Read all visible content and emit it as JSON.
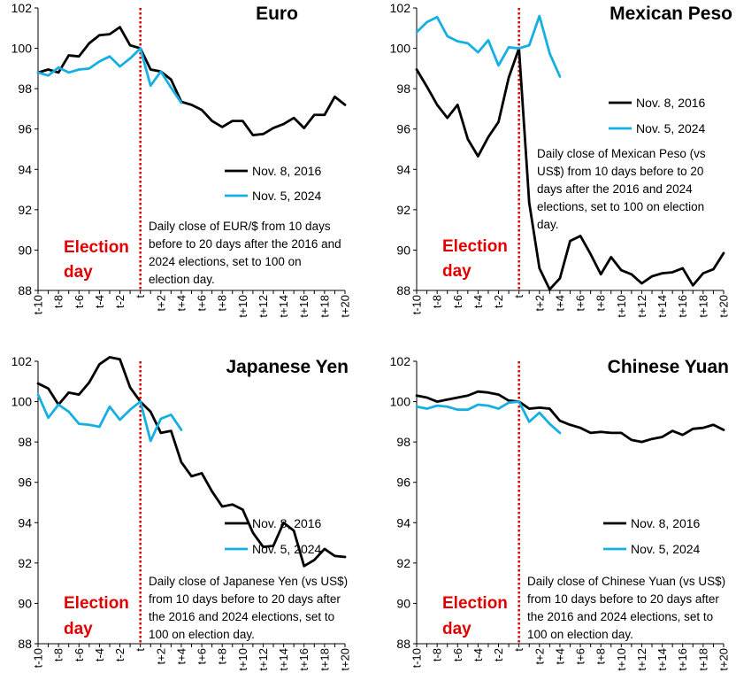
{
  "chart_data": [
    {
      "type": "line",
      "title": "Euro",
      "ylim": [
        88,
        102
      ],
      "yticks": [
        88,
        90,
        92,
        94,
        96,
        98,
        100,
        102
      ],
      "x_tick_labels": [
        "t-10",
        "t-8",
        "t-6",
        "t-4",
        "t-2",
        "t",
        "t+2",
        "t+4",
        "t+6",
        "t+8",
        "t+10",
        "t+12",
        "t+14",
        "t+16",
        "t+18",
        "t+20"
      ],
      "event_label": [
        "Election",
        "day"
      ],
      "note": [
        "Daily close of EUR/$ from 10 days",
        "before to 20 days after the 2016 and",
        "2024 elections, set to 100 on",
        "election day."
      ],
      "series": [
        {
          "name": "Nov. 8, 2016",
          "color": "#000000",
          "start": -10,
          "values": [
            98.8,
            98.95,
            98.8,
            99.65,
            99.6,
            100.25,
            100.65,
            100.7,
            101.05,
            100.15,
            100.0,
            98.95,
            98.85,
            98.45,
            97.35,
            97.2,
            96.95,
            96.4,
            96.1,
            96.4,
            96.4,
            95.7,
            95.75,
            96.05,
            96.25,
            96.55,
            96.05,
            96.7,
            96.7,
            97.6,
            97.2
          ]
        },
        {
          "name": "Nov. 5, 2024",
          "color": "#16AFE3",
          "start": -10,
          "values": [
            98.8,
            98.65,
            99.05,
            98.8,
            98.95,
            99.0,
            99.35,
            99.6,
            99.1,
            99.5,
            100.0,
            98.15,
            98.85,
            98.05,
            97.3
          ]
        }
      ]
    },
    {
      "type": "line",
      "title": "Mexican Peso",
      "ylim": [
        88,
        102
      ],
      "yticks": [
        88,
        90,
        92,
        94,
        96,
        98,
        100,
        102
      ],
      "x_tick_labels": [
        "t-10",
        "t-8",
        "t-6",
        "t-4",
        "t-2",
        "t",
        "t+2",
        "t+4",
        "t+6",
        "t+8",
        "t+10",
        "t+12",
        "t+14",
        "t+16",
        "t+18",
        "t+20"
      ],
      "event_label": [
        "Election",
        "day"
      ],
      "note": [
        "Daily close of Mexican Peso (vs",
        "US$) from 10 days before to 20",
        "days after the 2016 and 2024",
        "elections, set to 100 on election",
        "day."
      ],
      "series": [
        {
          "name": "Nov. 8, 2016",
          "color": "#000000",
          "start": -10,
          "values": [
            98.95,
            98.1,
            97.2,
            96.55,
            97.2,
            95.5,
            94.65,
            95.6,
            96.35,
            98.55,
            100.0,
            92.35,
            89.1,
            88.05,
            88.6,
            90.45,
            90.7,
            89.8,
            88.8,
            89.65,
            89.0,
            88.8,
            88.35,
            88.7,
            88.85,
            88.9,
            89.1,
            88.25,
            88.85,
            89.05,
            89.85
          ]
        },
        {
          "name": "Nov. 5, 2024",
          "color": "#16AFE3",
          "start": -10,
          "values": [
            100.8,
            101.3,
            101.55,
            100.6,
            100.35,
            100.25,
            99.8,
            100.4,
            99.15,
            100.05,
            100.0,
            100.15,
            101.6,
            99.75,
            98.6
          ]
        }
      ]
    },
    {
      "type": "line",
      "title": "Japanese Yen",
      "ylim": [
        88,
        102
      ],
      "yticks": [
        88,
        90,
        92,
        94,
        96,
        98,
        100,
        102
      ],
      "x_tick_labels": [
        "t-10",
        "t-8",
        "t-6",
        "t-4",
        "t-2",
        "t",
        "t+2",
        "t+4",
        "t+6",
        "t+8",
        "t+10",
        "t+12",
        "t+14",
        "t+16",
        "t+18",
        "t+20"
      ],
      "event_label": [
        "Election",
        "day"
      ],
      "note": [
        "Daily close of Japanese Yen (vs US$)",
        "from 10 days before to 20 days after",
        "the 2016 and 2024 elections, set to",
        "100 on election day."
      ],
      "series": [
        {
          "name": "Nov. 8, 2016",
          "color": "#000000",
          "start": -10,
          "values": [
            100.9,
            100.65,
            99.85,
            100.45,
            100.35,
            100.95,
            101.85,
            102.2,
            102.1,
            100.7,
            100.0,
            99.5,
            98.45,
            98.55,
            97.0,
            96.3,
            96.45,
            95.55,
            94.8,
            94.9,
            94.65,
            93.5,
            92.8,
            92.85,
            94.0,
            93.6,
            91.85,
            92.15,
            92.7,
            92.35,
            92.3
          ]
        },
        {
          "name": "Nov. 5, 2024",
          "color": "#16AFE3",
          "start": -10,
          "values": [
            100.35,
            99.2,
            99.85,
            99.5,
            98.9,
            98.85,
            98.75,
            99.75,
            99.1,
            99.6,
            100.0,
            98.05,
            99.15,
            99.35,
            98.6
          ]
        }
      ]
    },
    {
      "type": "line",
      "title": "Chinese Yuan",
      "ylim": [
        88,
        102
      ],
      "yticks": [
        88,
        90,
        92,
        94,
        96,
        98,
        100,
        102
      ],
      "x_tick_labels": [
        "t-10",
        "t-8",
        "t-6",
        "t-4",
        "t-2",
        "t",
        "t+2",
        "t+4",
        "t+6",
        "t+8",
        "t+10",
        "t+12",
        "t+14",
        "t+16",
        "t+18",
        "t+20"
      ],
      "event_label": [
        "Election",
        "day"
      ],
      "note": [
        "Daily close of Chinese Yuan (vs US$)",
        "from 10 days before to 20 days after",
        "the 2016 and 2024 elections, set to",
        "100 on election day."
      ],
      "series": [
        {
          "name": "Nov. 8, 2016",
          "color": "#000000",
          "start": -10,
          "values": [
            100.3,
            100.2,
            100.0,
            100.1,
            100.2,
            100.3,
            100.5,
            100.45,
            100.35,
            100.05,
            100.0,
            99.65,
            99.7,
            99.65,
            99.05,
            98.85,
            98.7,
            98.45,
            98.5,
            98.45,
            98.45,
            98.1,
            98.0,
            98.15,
            98.25,
            98.55,
            98.35,
            98.65,
            98.7,
            98.85,
            98.6
          ]
        },
        {
          "name": "Nov. 5, 2024",
          "color": "#16AFE3",
          "start": -10,
          "values": [
            99.75,
            99.65,
            99.8,
            99.75,
            99.6,
            99.6,
            99.85,
            99.8,
            99.65,
            99.95,
            100.0,
            99.0,
            99.45,
            98.9,
            98.45
          ]
        }
      ]
    }
  ]
}
